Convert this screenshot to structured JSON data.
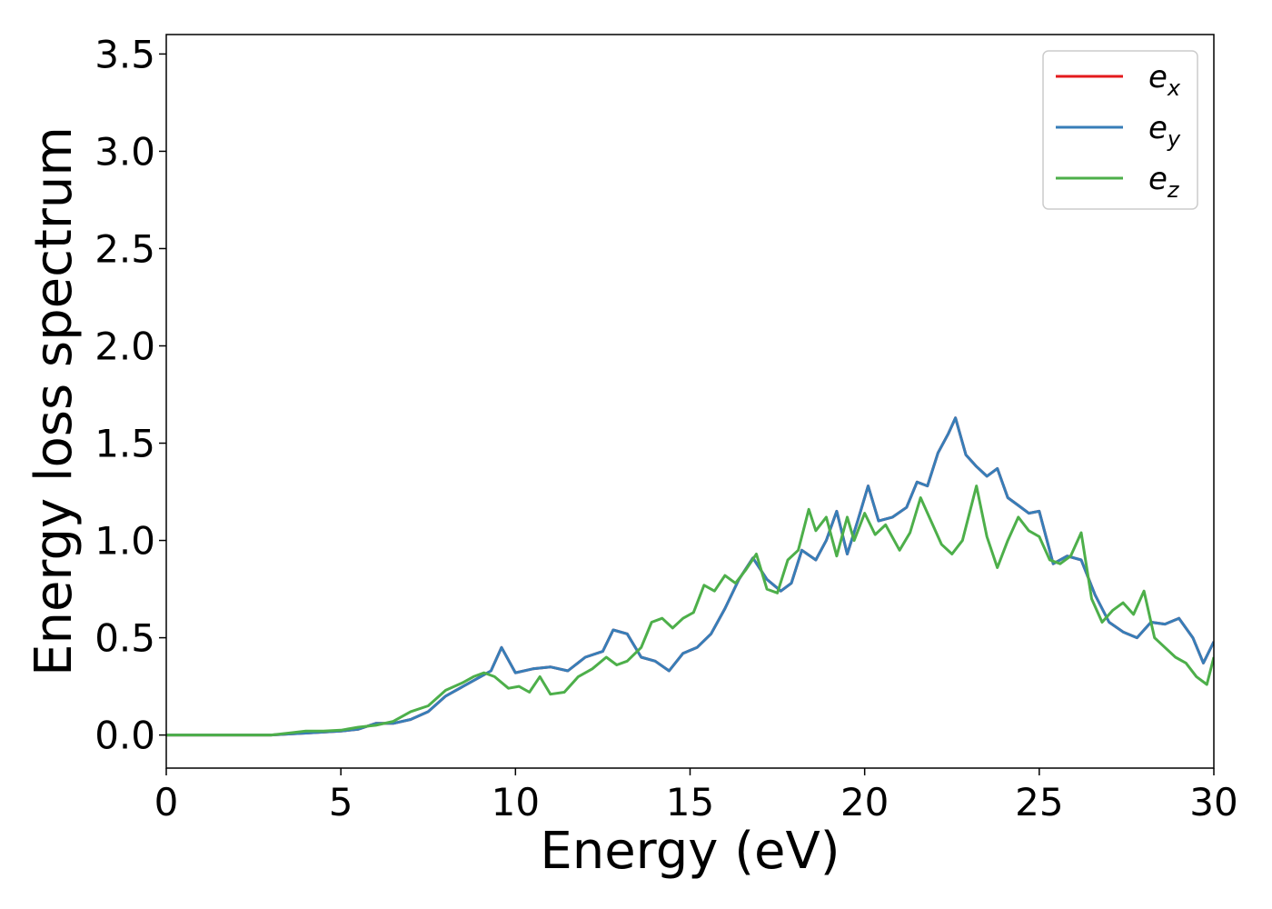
{
  "chart_data": {
    "type": "line",
    "xlabel": "Energy (eV)",
    "ylabel": "Energy loss spectrum",
    "xlim": [
      0,
      30
    ],
    "ylim": [
      -0.17,
      3.6
    ],
    "x_ticks": [
      "0",
      "5",
      "10",
      "15",
      "20",
      "25",
      "30"
    ],
    "y_ticks": [
      "0.0",
      "0.5",
      "1.0",
      "1.5",
      "2.0",
      "2.5",
      "3.0",
      "3.5"
    ],
    "grid": false,
    "legend_position": "top-right",
    "series": [
      {
        "name": "e_x",
        "legend_base": "e",
        "legend_sub": "x",
        "color": "#e41a1c",
        "x": [
          0,
          1,
          2,
          3,
          3.5,
          4,
          4.5,
          5,
          5.5,
          6,
          6.5,
          7,
          7.5,
          8,
          8.5,
          9,
          9.3,
          9.6,
          10,
          10.5,
          11,
          11.5,
          12,
          12.5,
          12.8,
          13.2,
          13.6,
          14,
          14.4,
          14.8,
          15.2,
          15.6,
          16,
          16.4,
          16.8,
          17.2,
          17.6,
          17.9,
          18.2,
          18.6,
          18.9,
          19.2,
          19.5,
          19.8,
          20.1,
          20.4,
          20.8,
          21.2,
          21.5,
          21.8,
          22.1,
          22.4,
          22.6,
          22.9,
          23.2,
          23.5,
          23.8,
          24.1,
          24.4,
          24.7,
          25,
          25.4,
          25.8,
          26.2,
          26.6,
          27,
          27.4,
          27.8,
          28.2,
          28.6,
          29,
          29.4,
          29.7,
          30
        ],
        "values": [
          0.0,
          0.0,
          0.0,
          0.0,
          0.005,
          0.01,
          0.015,
          0.02,
          0.03,
          0.06,
          0.06,
          0.08,
          0.12,
          0.2,
          0.25,
          0.3,
          0.33,
          0.45,
          0.32,
          0.34,
          0.35,
          0.33,
          0.4,
          0.43,
          0.54,
          0.52,
          0.4,
          0.38,
          0.33,
          0.42,
          0.45,
          0.52,
          0.65,
          0.8,
          0.91,
          0.8,
          0.74,
          0.78,
          0.95,
          0.9,
          1.0,
          1.15,
          0.93,
          1.1,
          1.28,
          1.1,
          1.12,
          1.17,
          1.3,
          1.28,
          1.45,
          1.55,
          1.63,
          1.44,
          1.38,
          1.33,
          1.37,
          1.22,
          1.18,
          1.14,
          1.15,
          0.88,
          0.92,
          0.9,
          0.72,
          0.58,
          0.53,
          0.5,
          0.58,
          0.57,
          0.6,
          0.5,
          0.37,
          0.48
        ]
      },
      {
        "name": "e_y",
        "legend_base": "e",
        "legend_sub": "y",
        "color": "#377eb8",
        "x": [
          0,
          1,
          2,
          3,
          3.5,
          4,
          4.5,
          5,
          5.5,
          6,
          6.5,
          7,
          7.5,
          8,
          8.5,
          9,
          9.3,
          9.6,
          10,
          10.5,
          11,
          11.5,
          12,
          12.5,
          12.8,
          13.2,
          13.6,
          14,
          14.4,
          14.8,
          15.2,
          15.6,
          16,
          16.4,
          16.8,
          17.2,
          17.6,
          17.9,
          18.2,
          18.6,
          18.9,
          19.2,
          19.5,
          19.8,
          20.1,
          20.4,
          20.8,
          21.2,
          21.5,
          21.8,
          22.1,
          22.4,
          22.6,
          22.9,
          23.2,
          23.5,
          23.8,
          24.1,
          24.4,
          24.7,
          25,
          25.4,
          25.8,
          26.2,
          26.6,
          27,
          27.4,
          27.8,
          28.2,
          28.6,
          29,
          29.4,
          29.7,
          30
        ],
        "values": [
          0.0,
          0.0,
          0.0,
          0.0,
          0.005,
          0.01,
          0.015,
          0.02,
          0.03,
          0.06,
          0.06,
          0.08,
          0.12,
          0.2,
          0.25,
          0.3,
          0.33,
          0.45,
          0.32,
          0.34,
          0.35,
          0.33,
          0.4,
          0.43,
          0.54,
          0.52,
          0.4,
          0.38,
          0.33,
          0.42,
          0.45,
          0.52,
          0.65,
          0.8,
          0.91,
          0.8,
          0.74,
          0.78,
          0.95,
          0.9,
          1.0,
          1.15,
          0.93,
          1.1,
          1.28,
          1.1,
          1.12,
          1.17,
          1.3,
          1.28,
          1.45,
          1.55,
          1.63,
          1.44,
          1.38,
          1.33,
          1.37,
          1.22,
          1.18,
          1.14,
          1.15,
          0.88,
          0.92,
          0.9,
          0.72,
          0.58,
          0.53,
          0.5,
          0.58,
          0.57,
          0.6,
          0.5,
          0.37,
          0.48
        ]
      },
      {
        "name": "e_z",
        "legend_base": "e",
        "legend_sub": "z",
        "color": "#4daf4a",
        "x": [
          0,
          1,
          2,
          3,
          3.5,
          4,
          4.5,
          5,
          5.5,
          6,
          6.5,
          7,
          7.5,
          8,
          8.5,
          8.8,
          9.1,
          9.4,
          9.8,
          10.1,
          10.4,
          10.7,
          11,
          11.4,
          11.8,
          12.2,
          12.6,
          12.9,
          13.2,
          13.6,
          13.9,
          14.2,
          14.5,
          14.8,
          15.1,
          15.4,
          15.7,
          16,
          16.3,
          16.6,
          16.9,
          17.2,
          17.5,
          17.8,
          18.1,
          18.4,
          18.6,
          18.9,
          19.2,
          19.5,
          19.7,
          20,
          20.3,
          20.6,
          21,
          21.3,
          21.6,
          21.9,
          22.2,
          22.5,
          22.8,
          23.2,
          23.5,
          23.8,
          24.1,
          24.4,
          24.7,
          25,
          25.3,
          25.6,
          25.9,
          26.2,
          26.5,
          26.8,
          27.1,
          27.4,
          27.7,
          28,
          28.3,
          28.6,
          28.9,
          29.2,
          29.5,
          29.8,
          30
        ],
        "values": [
          0.0,
          0.0,
          0.0,
          0.0,
          0.01,
          0.02,
          0.02,
          0.025,
          0.04,
          0.05,
          0.07,
          0.12,
          0.15,
          0.23,
          0.27,
          0.3,
          0.32,
          0.3,
          0.24,
          0.25,
          0.22,
          0.3,
          0.21,
          0.22,
          0.3,
          0.34,
          0.4,
          0.36,
          0.38,
          0.45,
          0.58,
          0.6,
          0.55,
          0.6,
          0.63,
          0.77,
          0.74,
          0.82,
          0.78,
          0.85,
          0.93,
          0.75,
          0.73,
          0.9,
          0.95,
          1.16,
          1.05,
          1.12,
          0.92,
          1.12,
          1.0,
          1.14,
          1.03,
          1.08,
          0.95,
          1.04,
          1.22,
          1.1,
          0.98,
          0.93,
          1.0,
          1.28,
          1.02,
          0.86,
          1.0,
          1.12,
          1.05,
          1.02,
          0.9,
          0.88,
          0.92,
          1.04,
          0.7,
          0.58,
          0.64,
          0.68,
          0.62,
          0.74,
          0.5,
          0.45,
          0.4,
          0.37,
          0.3,
          0.26,
          0.4
        ]
      }
    ]
  }
}
